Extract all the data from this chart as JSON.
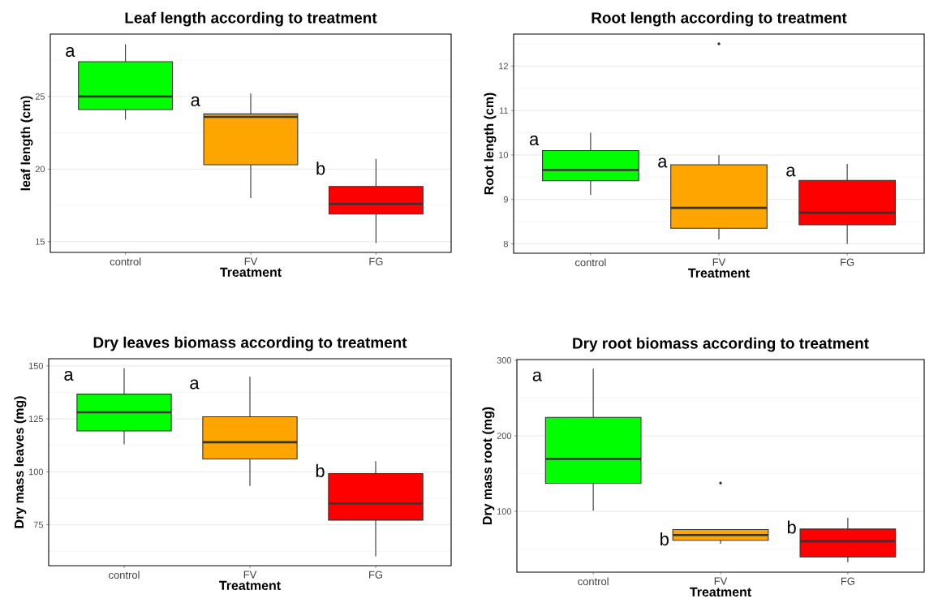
{
  "chart_data": [
    {
      "type": "box",
      "title": "Leaf length according to treatment",
      "xlabel": "Treatment",
      "ylabel": "leaf length (cm)",
      "categories": [
        "control",
        "FV",
        "FG"
      ],
      "colors": [
        "#00ff00",
        "#ffa500",
        "#ff0000"
      ],
      "ylim": [
        14.26,
        29.3
      ],
      "yticks": [
        15,
        {
          "value": 17.5,
          "label": null
        },
        20,
        {
          "value": 22.5,
          "label": null
        },
        25,
        {
          "value": 27.5,
          "label": null
        }
      ],
      "grid": "y",
      "boxes": [
        {
          "low": 23.4,
          "q1": 24.1,
          "median": 25.0,
          "q3": 27.4,
          "high": 28.6
        },
        {
          "low": 18.0,
          "q1": 20.3,
          "median": 23.6,
          "q3": 23.8,
          "high": 25.2
        },
        {
          "low": 14.9,
          "q1": 16.9,
          "median": 17.6,
          "q3": 18.8,
          "high": 20.7
        }
      ],
      "annotations": [
        "a",
        "a",
        "b"
      ]
    },
    {
      "type": "box",
      "title": "Root length according to treatment",
      "xlabel": "Treatment",
      "ylabel": "Root length (cm)",
      "categories": [
        "control",
        "FV",
        "FG"
      ],
      "colors": [
        "#00ff00",
        "#ffa500",
        "#ff0000"
      ],
      "ylim": [
        7.79,
        12.72
      ],
      "yticks": [
        8,
        {
          "value": 8.5,
          "label": null
        },
        9,
        {
          "value": 9.5,
          "label": null
        },
        10,
        {
          "value": 10.5,
          "label": null
        },
        11,
        {
          "value": 11.5,
          "label": null
        },
        12,
        {
          "value": 12.5,
          "label": null
        }
      ],
      "grid": "y",
      "boxes": [
        {
          "low": 9.1,
          "q1": 9.42,
          "median": 9.66,
          "q3": 10.1,
          "high": 10.5
        },
        {
          "low": 8.1,
          "q1": 8.35,
          "median": 8.81,
          "q3": 9.78,
          "high": 10.0,
          "outliers": [
            12.5
          ]
        },
        {
          "low": 8.0,
          "q1": 8.43,
          "median": 8.7,
          "q3": 9.43,
          "high": 9.8
        }
      ],
      "annotations": [
        "a",
        "a",
        "a"
      ]
    },
    {
      "type": "box",
      "title": "Dry leaves biomass according to treatment",
      "xlabel": "Treatment",
      "ylabel": "Dry mass leaves (mg)",
      "categories": [
        "control",
        "FV",
        "FG"
      ],
      "colors": [
        "#00ff00",
        "#ffa500",
        "#ff0000"
      ],
      "ylim": [
        55.7,
        153.4
      ],
      "yticks": [
        {
          "value": 62.5,
          "label": null
        },
        75,
        {
          "value": 87.5,
          "label": null
        },
        100,
        {
          "value": 112.5,
          "label": null
        },
        125,
        {
          "value": 137.5,
          "label": null
        },
        150
      ],
      "grid": "y",
      "boxes": [
        {
          "low": 113,
          "q1": 119.3,
          "median": 128.1,
          "q3": 136.7,
          "high": 149
        },
        {
          "low": 93.3,
          "q1": 106.1,
          "median": 114,
          "q3": 126,
          "high": 145
        },
        {
          "low": 60.1,
          "q1": 77.2,
          "median": 85.1,
          "q3": 99.2,
          "high": 105
        }
      ],
      "annotations": [
        "a",
        "a",
        "b"
      ]
    },
    {
      "type": "box",
      "title": "Dry root biomass according to treatment",
      "xlabel": "Treatment",
      "ylabel": "Dry mass root (mg)",
      "categories": [
        "control",
        "FV",
        "FG"
      ],
      "colors": [
        "#00ff00",
        "#ffa500",
        "#ff0000"
      ],
      "ylim": [
        19.5,
        301
      ],
      "yticks": [
        {
          "value": 50,
          "label": null
        },
        100,
        {
          "value": 150,
          "label": null
        },
        200,
        {
          "value": 250,
          "label": null
        },
        300
      ],
      "grid": "y",
      "boxes": [
        {
          "low": 100.8,
          "q1": 137.2,
          "median": 169.3,
          "q3": 224.5,
          "high": 289
        },
        {
          "low": 57,
          "q1": 61.7,
          "median": 68.6,
          "q3": 75.9,
          "high": 75.9,
          "outliers": [
            137.5
          ]
        },
        {
          "low": 32.6,
          "q1": 39.8,
          "median": 60.5,
          "q3": 76.6,
          "high": 91.6
        }
      ],
      "annotations": [
        "a",
        "b",
        "b"
      ]
    }
  ]
}
